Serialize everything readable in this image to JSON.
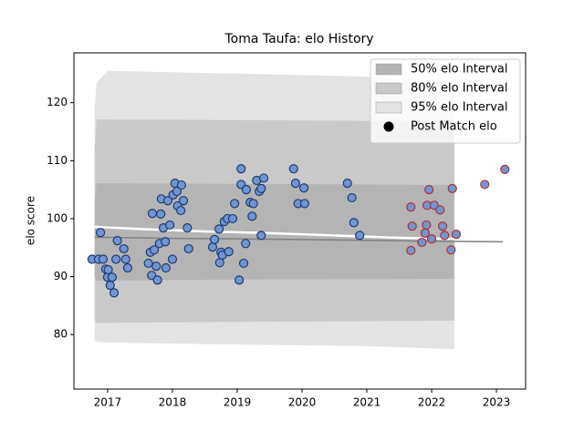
{
  "chart_data": {
    "type": "scatter",
    "title": "Toma Taufa: elo History",
    "ylabel": "elo score",
    "xlim": [
      2016.48,
      2023.45
    ],
    "ylim": [
      70.6,
      128.6
    ],
    "xticks": [
      2017,
      2018,
      2019,
      2020,
      2021,
      2022,
      2023
    ],
    "yticks": [
      80,
      90,
      100,
      110,
      120
    ],
    "legend": "upper right",
    "bands": [
      {
        "name": "95% elo Interval",
        "color": "#e3e3e3",
        "x": [
          2016.8,
          2016.83,
          2017.0,
          2019.0,
          2021.0,
          2022.35
        ],
        "upper": [
          119,
          123.5,
          125.5,
          125,
          124.5,
          123.5
        ],
        "lower": [
          79,
          78.8,
          78.6,
          78.3,
          78,
          77.5
        ]
      },
      {
        "name": "80% elo Interval",
        "color": "#c9c9c9",
        "x": [
          2016.8,
          2016.83,
          2019.0,
          2022.35
        ],
        "upper": [
          112,
          117.1,
          117,
          116.8
        ],
        "lower": [
          82.5,
          82,
          82.2,
          82.4
        ]
      },
      {
        "name": "50% elo Interval",
        "color": "#b4b4b4",
        "x": [
          2016.8,
          2016.83,
          2019.0,
          2022.35
        ],
        "upper": [
          103,
          106.1,
          106,
          105.8
        ],
        "lower": [
          90,
          89.3,
          89.5,
          89.6
        ]
      }
    ],
    "lines": [
      {
        "color": "#808080",
        "width": 1.5,
        "x": [
          2016.8,
          2018.0,
          2020.0,
          2022.0,
          2023.1
        ],
        "values": [
          96.8,
          96.6,
          96.4,
          96.1,
          96.0
        ]
      },
      {
        "color": "#ffffff",
        "width": 2.5,
        "x": [
          2016.8,
          2017.5,
          2018.5,
          2019.5,
          2020.5,
          2021.5,
          2022.4
        ],
        "values": [
          98.6,
          98.2,
          97.8,
          97.5,
          97.1,
          96.7,
          96.5
        ]
      }
    ],
    "series": [
      {
        "name": "Post Match elo",
        "color": "#7096d2",
        "edgecolor": "#1f3a70",
        "legend_color": "#000000",
        "x": [
          2016.76,
          2016.86,
          2016.89,
          2016.93,
          2016.97,
          2017.0,
          2017.01,
          2017.04,
          2017.07,
          2017.1,
          2017.13,
          2017.15,
          2017.25,
          2017.28,
          2017.31,
          2017.63,
          2017.66,
          2017.68,
          2017.69,
          2017.72,
          2017.75,
          2017.77,
          2017.8,
          2017.82,
          2017.83,
          2017.86,
          2017.89,
          2017.9,
          2017.93,
          2017.96,
          2018.0,
          2018.01,
          2018.04,
          2018.07,
          2018.08,
          2018.13,
          2018.14,
          2018.17,
          2018.23,
          2018.25,
          2018.62,
          2018.65,
          2018.72,
          2018.73,
          2018.75,
          2018.77,
          2018.8,
          2018.85,
          2018.87,
          2018.93,
          2018.96,
          2019.03,
          2019.06,
          2019.06,
          2019.1,
          2019.13,
          2019.14,
          2019.2,
          2019.23,
          2019.25,
          2019.3,
          2019.34,
          2019.37,
          2019.41,
          2019.37,
          2019.87,
          2019.9,
          2019.94,
          2020.03,
          2020.04,
          2020.7,
          2020.77,
          2020.8,
          2020.89
        ],
        "values": [
          93.0,
          93.0,
          97.6,
          93.0,
          91.3,
          89.9,
          91.2,
          88.5,
          89.9,
          87.2,
          93.0,
          96.2,
          94.8,
          93.0,
          91.5,
          92.3,
          94.2,
          90.2,
          100.9,
          94.6,
          91.8,
          89.4,
          95.7,
          100.8,
          103.4,
          98.4,
          96.0,
          91.5,
          103.1,
          98.9,
          93.0,
          104.1,
          106.1,
          104.7,
          102.2,
          101.4,
          105.8,
          103.1,
          98.4,
          94.8,
          95.1,
          96.4,
          98.2,
          92.4,
          94.2,
          93.7,
          99.5,
          100.0,
          94.3,
          100.0,
          102.6,
          89.4,
          108.6,
          105.9,
          92.3,
          95.7,
          105.0,
          102.8,
          100.4,
          102.6,
          106.6,
          104.7,
          105.2,
          107.0,
          97.1,
          108.6,
          106.1,
          102.6,
          105.3,
          102.6,
          106.1,
          103.6,
          99.3,
          97.1
        ]
      },
      {
        "color": "#7096d2",
        "edgecolor": "#b03030",
        "x": [
          2021.68,
          2021.68,
          2021.7,
          2021.85,
          2021.9,
          2021.92,
          2021.93,
          2021.96,
          2022.0,
          2022.04,
          2022.13,
          2022.17,
          2022.2,
          2022.3,
          2022.32,
          2022.38,
          2022.82,
          2023.13
        ],
        "values": [
          102.0,
          94.5,
          98.7,
          95.9,
          97.5,
          98.9,
          102.3,
          105.0,
          96.5,
          102.3,
          101.5,
          98.7,
          97.1,
          94.6,
          105.2,
          97.3,
          105.9,
          108.5
        ]
      }
    ]
  }
}
